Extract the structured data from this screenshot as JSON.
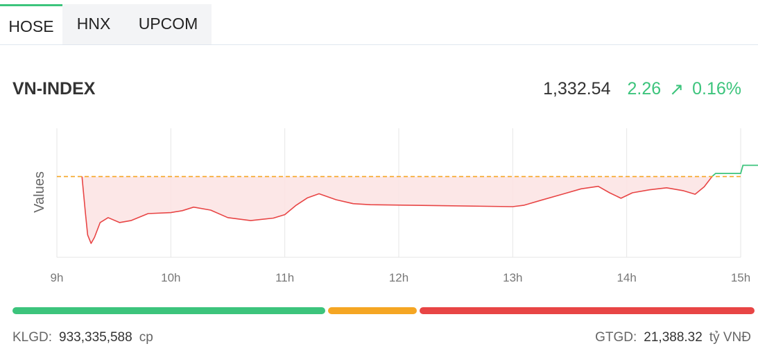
{
  "tabs": [
    {
      "label": "HOSE",
      "active": true
    },
    {
      "label": "HNX",
      "active": false
    },
    {
      "label": "UPCOM",
      "active": false
    }
  ],
  "index": {
    "name": "VN-INDEX",
    "price": "1,332.54",
    "change": "2.26",
    "change_pct": "0.16%",
    "direction": "up"
  },
  "colors": {
    "up": "#3cc47c",
    "down": "#e84545",
    "reference": "#f5a623",
    "unchanged": "#f5a623",
    "area_fill": "#fce3e3"
  },
  "chart_data": {
    "type": "line",
    "title": "",
    "xlabel": "",
    "ylabel": "Values",
    "x_ticks": [
      "9h",
      "10h",
      "11h",
      "12h",
      "13h",
      "14h",
      "15h"
    ],
    "xlim": [
      9,
      15
    ],
    "ylim": [
      1314,
      1340
    ],
    "reference": 1330.28,
    "grid": {
      "vertical": true,
      "horizontal": false
    },
    "series": [
      {
        "points": [
          [
            9.22,
            1330.3
          ],
          [
            9.25,
            1323.0
          ],
          [
            9.27,
            1318.5
          ],
          [
            9.3,
            1316.8
          ],
          [
            9.33,
            1318.0
          ],
          [
            9.38,
            1321.0
          ],
          [
            9.45,
            1322.0
          ],
          [
            9.55,
            1321.0
          ],
          [
            9.65,
            1321.4
          ],
          [
            9.8,
            1322.8
          ],
          [
            10.0,
            1323.0
          ],
          [
            10.1,
            1323.4
          ],
          [
            10.2,
            1324.1
          ],
          [
            10.35,
            1323.5
          ],
          [
            10.5,
            1322.0
          ],
          [
            10.7,
            1321.4
          ],
          [
            10.9,
            1321.9
          ],
          [
            11.0,
            1322.6
          ],
          [
            11.1,
            1324.5
          ],
          [
            11.2,
            1326.0
          ],
          [
            11.3,
            1326.8
          ],
          [
            11.45,
            1325.6
          ],
          [
            11.6,
            1324.8
          ],
          [
            11.75,
            1324.6
          ],
          [
            13.0,
            1324.2
          ],
          [
            13.1,
            1324.5
          ],
          [
            13.25,
            1325.5
          ],
          [
            13.45,
            1326.8
          ],
          [
            13.6,
            1327.8
          ],
          [
            13.75,
            1328.3
          ],
          [
            13.85,
            1327.0
          ],
          [
            13.95,
            1325.9
          ],
          [
            14.05,
            1327.0
          ],
          [
            14.2,
            1327.6
          ],
          [
            14.35,
            1328.0
          ],
          [
            14.5,
            1327.4
          ],
          [
            14.6,
            1326.7
          ],
          [
            14.68,
            1328.2
          ],
          [
            14.75,
            1330.3
          ]
        ],
        "closing": [
          [
            14.75,
            1330.3
          ],
          [
            14.78,
            1330.9
          ],
          [
            15.0,
            1330.9
          ],
          [
            15.02,
            1332.54
          ],
          [
            15.25,
            1332.54
          ]
        ]
      }
    ]
  },
  "breadth": {
    "up_ratio": 0.425,
    "unchanged_ratio": 0.12,
    "down_ratio": 0.455
  },
  "footer": {
    "volume_label": "KLGD:",
    "volume_value": "933,335,588",
    "volume_unit": "cp",
    "value_label": "GTGD:",
    "value_value": "21,388.32",
    "value_unit": "tỷ VNĐ"
  }
}
